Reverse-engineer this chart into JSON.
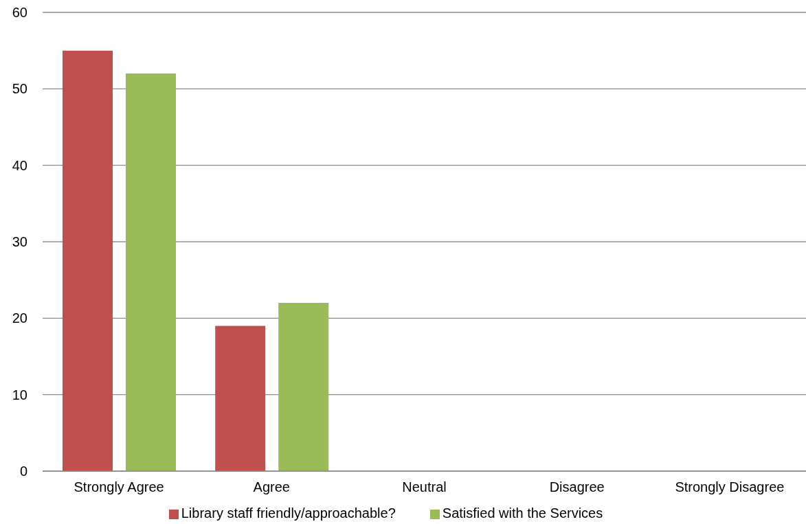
{
  "chart_data": {
    "type": "bar",
    "categories": [
      "Strongly Agree",
      "Agree",
      "Neutral",
      "Disagree",
      "Strongly Disagree"
    ],
    "series": [
      {
        "name": "Library staff friendly/approachable?",
        "color": "#c0504d",
        "values": [
          55,
          19,
          0,
          0,
          0
        ]
      },
      {
        "name": "Satisfied with the Services",
        "color": "#9bbb59",
        "values": [
          52,
          22,
          0,
          0,
          0
        ]
      }
    ],
    "ylim": [
      0,
      60
    ],
    "yticks": [
      0,
      10,
      20,
      30,
      40,
      50,
      60
    ],
    "grid": "y",
    "legend": "bottom"
  }
}
